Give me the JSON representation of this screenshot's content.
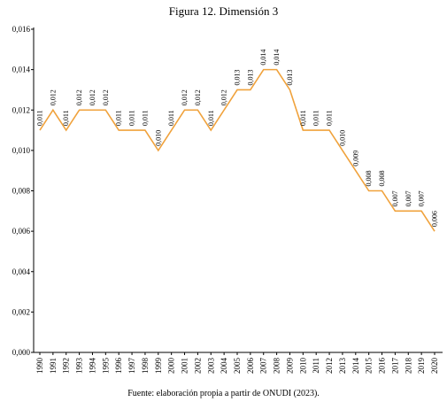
{
  "figure": {
    "title": "Figura 12. Dimensión 3",
    "source_prefix": "Fuente: elaboración propia a partir de ",
    "source_org": "ONUDI",
    "source_suffix": " (2023)."
  },
  "chart_data": {
    "type": "line",
    "title": "Figura 12. Dimensión 3",
    "xlabel": "",
    "ylabel": "",
    "ylim": [
      0,
      0.016
    ],
    "y_ticks": [
      0.0,
      0.002,
      0.004,
      0.006,
      0.008,
      0.01,
      0.012,
      0.014,
      0.016
    ],
    "y_tick_labels": [
      "0,000",
      "0,002",
      "0,004",
      "0,006",
      "0,008",
      "0,010",
      "0,012",
      "0,014",
      "0,016"
    ],
    "grid": false,
    "legend": "none",
    "color": "#f0a23c",
    "x": [
      "1990",
      "1991",
      "1992",
      "1993",
      "1994",
      "1995",
      "1996",
      "1997",
      "1998",
      "1999",
      "2000",
      "2001",
      "2002",
      "2003",
      "2004",
      "2005",
      "2006",
      "2007",
      "2008",
      "2009",
      "2010",
      "2011",
      "2012",
      "2013",
      "2014",
      "2015",
      "2016",
      "2017",
      "2018",
      "2019",
      "2020"
    ],
    "values": [
      0.011,
      0.012,
      0.011,
      0.012,
      0.012,
      0.012,
      0.011,
      0.011,
      0.011,
      0.01,
      0.011,
      0.012,
      0.012,
      0.011,
      0.012,
      0.013,
      0.013,
      0.014,
      0.014,
      0.013,
      0.011,
      0.011,
      0.011,
      0.01,
      0.009,
      0.008,
      0.008,
      0.007,
      0.007,
      0.007,
      0.006
    ],
    "data_labels": [
      "0,011",
      "0,012",
      "0,011",
      "0,012",
      "0,012",
      "0,012",
      "0,011",
      "0,011",
      "0,011",
      "0,010",
      "0,011",
      "0,012",
      "0,012",
      "0,011",
      "0,012",
      "0,013",
      "0,013",
      "0,014",
      "0,014",
      "0,013",
      "0,011",
      "0,011",
      "0,011",
      "0,010",
      "0,009",
      "0,008",
      "0,008",
      "0,007",
      "0,007",
      "0,007",
      "0,006"
    ]
  }
}
